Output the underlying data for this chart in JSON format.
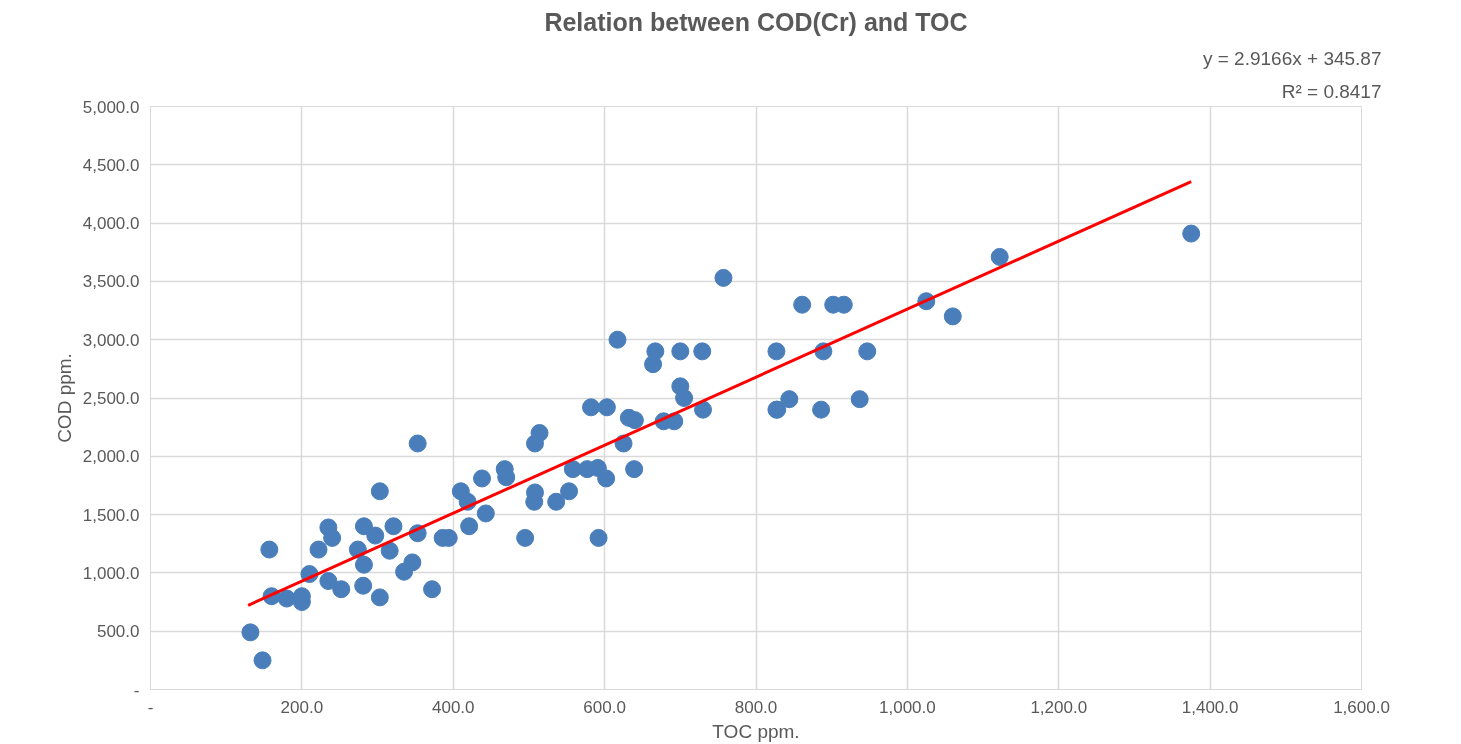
{
  "chart_data": {
    "type": "scatter",
    "title": "Relation between COD(Cr) and TOC",
    "xlabel": "TOC ppm.",
    "ylabel": "COD ppm.",
    "annotations": [
      "y = 2.9166x + 345.87",
      "R² = 0.8417"
    ],
    "xlim": [
      0,
      1600
    ],
    "ylim": [
      0,
      5000
    ],
    "xticks": [
      {
        "value": 0,
        "label": "-"
      },
      {
        "value": 200,
        "label": "200.0"
      },
      {
        "value": 400,
        "label": "400.0"
      },
      {
        "value": 600,
        "label": "600.0"
      },
      {
        "value": 800,
        "label": "800.0"
      },
      {
        "value": 1000,
        "label": "1,000.0"
      },
      {
        "value": 1200,
        "label": "1,200.0"
      },
      {
        "value": 1400,
        "label": "1,400.0"
      },
      {
        "value": 1600,
        "label": "1,600.0"
      }
    ],
    "yticks": [
      {
        "value": 0,
        "label": "-"
      },
      {
        "value": 500,
        "label": "500.0"
      },
      {
        "value": 1000,
        "label": "1,000.0"
      },
      {
        "value": 1500,
        "label": "1,500.0"
      },
      {
        "value": 2000,
        "label": "2,000.0"
      },
      {
        "value": 2500,
        "label": "2,500.0"
      },
      {
        "value": 3000,
        "label": "3,000.0"
      },
      {
        "value": 3500,
        "label": "3,500.0"
      },
      {
        "value": 4000,
        "label": "4,000.0"
      },
      {
        "value": 4500,
        "label": "4,500.0"
      },
      {
        "value": 5000,
        "label": "5,000.0"
      }
    ],
    "grid": true,
    "series": [
      {
        "marker": "circle",
        "color": "#4a7ebb",
        "x": [
          132,
          148,
          157,
          160,
          180,
          200,
          200,
          210,
          222,
          235,
          240,
          235,
          252,
          274,
          282,
          281,
          282,
          303,
          303,
          297,
          316,
          321,
          335,
          346,
          353,
          353,
          372,
          386,
          394,
          410,
          419,
          438,
          421,
          443,
          468,
          470,
          495,
          508,
          507,
          508,
          514,
          536,
          553,
          558,
          577,
          591,
          602,
          592,
          582,
          603,
          625,
          632,
          640,
          639,
          678,
          692,
          617,
          667,
          664,
          700,
          729,
          757,
          700,
          705,
          730,
          827,
          827,
          861,
          902,
          916,
          889,
          947,
          828,
          844,
          886,
          937,
          1025,
          1060,
          1122,
          1375
        ],
        "values": [
          490,
          250,
          1200,
          800,
          780,
          750,
          800,
          990,
          1200,
          1390,
          1300,
          930,
          860,
          1200,
          1070,
          890,
          1400,
          1700,
          790,
          1320,
          1190,
          1400,
          1010,
          1090,
          2110,
          1340,
          860,
          1300,
          1300,
          1700,
          1610,
          1810,
          1400,
          1510,
          1890,
          1820,
          1300,
          1690,
          1610,
          2110,
          2200,
          1610,
          1700,
          1890,
          1890,
          1900,
          1810,
          1300,
          2420,
          2420,
          2110,
          2330,
          2310,
          1890,
          2300,
          2300,
          3000,
          2900,
          2790,
          2900,
          2900,
          3530,
          2600,
          2500,
          2400,
          2900,
          2400,
          3300,
          3300,
          3300,
          2900,
          2900,
          2400,
          2490,
          2400,
          2490,
          3330,
          3200,
          3710,
          3910
        ]
      },
      {
        "type": "line",
        "color": "#ff0000",
        "x": [
          129,
          1375
        ],
        "values": [
          722,
          4356
        ]
      }
    ]
  }
}
